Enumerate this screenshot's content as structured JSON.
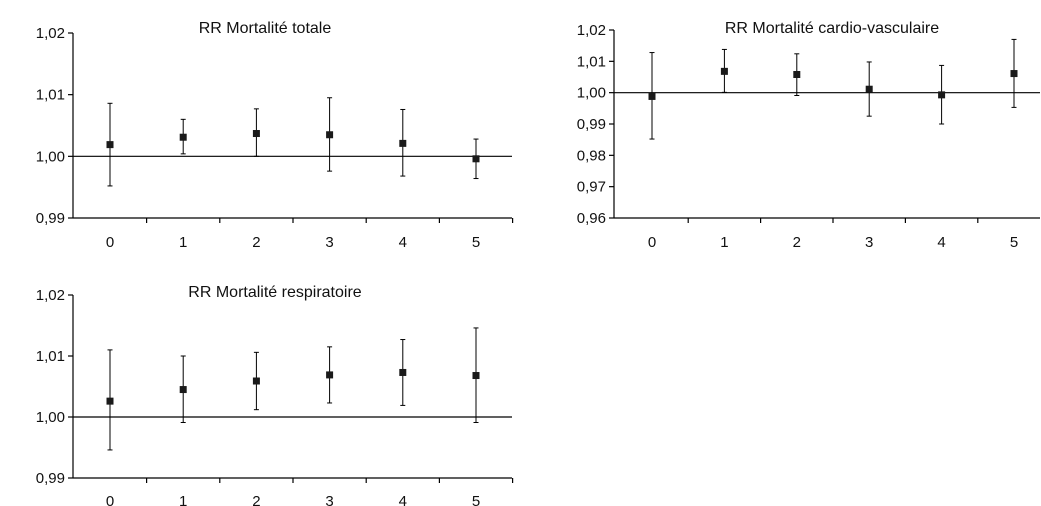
{
  "chart_data": [
    {
      "type": "scatter",
      "title": "RR Mortalité totale",
      "x": [
        0,
        1,
        2,
        3,
        4,
        5
      ],
      "y": [
        1.0019,
        1.0031,
        1.0037,
        1.0035,
        1.0021,
        0.9996
      ],
      "lower": [
        0.9952,
        1.0004,
        1.0,
        0.9976,
        0.9968,
        0.9964
      ],
      "upper": [
        1.0086,
        1.006,
        1.0077,
        1.0095,
        1.0076,
        1.0028
      ],
      "ylim": [
        0.99,
        1.02
      ],
      "yticks": [
        "0,99",
        "1,00",
        "1,01",
        "1,02"
      ],
      "xticks": [
        "0",
        "1",
        "2",
        "3",
        "4",
        "5"
      ],
      "reference_line": 1.0,
      "point_color": "#1a1a1a"
    },
    {
      "type": "scatter",
      "title": "RR Mortalité cardio-vasculaire",
      "x": [
        0,
        1,
        2,
        3,
        4,
        5
      ],
      "y": [
        0.9988,
        1.0068,
        1.0058,
        1.0011,
        0.9993,
        1.0061
      ],
      "lower": [
        0.9852,
        1.0001,
        0.9991,
        0.9925,
        0.99,
        0.9953
      ],
      "upper": [
        1.0128,
        1.0138,
        1.0124,
        1.0098,
        1.0087,
        1.017
      ],
      "ylim": [
        0.96,
        1.02
      ],
      "yticks": [
        "0,96",
        "0,97",
        "0,98",
        "0,99",
        "1,00",
        "1,01",
        "1,02"
      ],
      "xticks": [
        "0",
        "1",
        "2",
        "3",
        "4",
        "5"
      ],
      "reference_line": 1.0,
      "point_color": "#1a1a1a"
    },
    {
      "type": "scatter",
      "title": "RR Mortalité respiratoire",
      "x": [
        0,
        1,
        2,
        3,
        4,
        5
      ],
      "y": [
        1.0026,
        1.0045,
        1.0059,
        1.0069,
        1.0073,
        1.0068
      ],
      "lower": [
        0.9946,
        0.9991,
        1.0012,
        1.0023,
        1.0019,
        0.9991
      ],
      "upper": [
        1.011,
        1.01,
        1.0106,
        1.0115,
        1.0127,
        1.0146
      ],
      "ylim": [
        0.99,
        1.02
      ],
      "yticks": [
        "0,99",
        "1,00",
        "1,01",
        "1,02"
      ],
      "xticks": [
        "0",
        "1",
        "2",
        "3",
        "4",
        "5"
      ],
      "reference_line": 1.0,
      "point_color": "#1a1a1a"
    }
  ]
}
